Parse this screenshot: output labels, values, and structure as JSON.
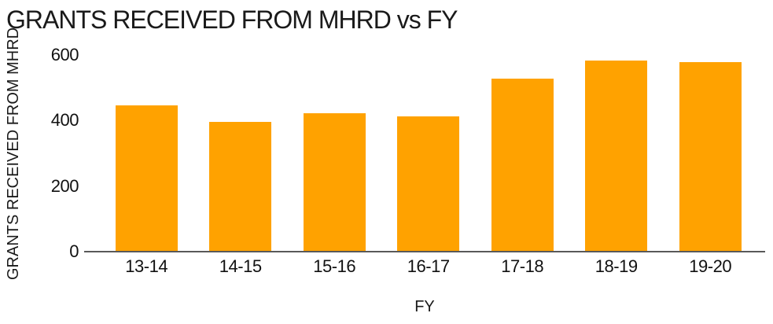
{
  "chart_data": {
    "type": "bar",
    "title": "GRANTS RECEIVED FROM MHRD vs FY",
    "xlabel": "FY",
    "ylabel": "GRANTS RECEIVED FROM MHRD",
    "categories": [
      "13-14",
      "14-15",
      "15-16",
      "16-17",
      "17-18",
      "18-19",
      "19-20"
    ],
    "values": [
      445,
      393,
      420,
      410,
      525,
      580,
      575
    ],
    "ylim": [
      0,
      600
    ],
    "yticks": [
      0,
      200,
      400,
      600
    ],
    "grid": false,
    "legend": false,
    "bar_color": "#FFA200"
  },
  "colors": {
    "bar": "#FFA200",
    "axis_line": "#595959",
    "title_text": "#1a1a1a",
    "tick_text": "#111111",
    "background": "#ffffff"
  }
}
